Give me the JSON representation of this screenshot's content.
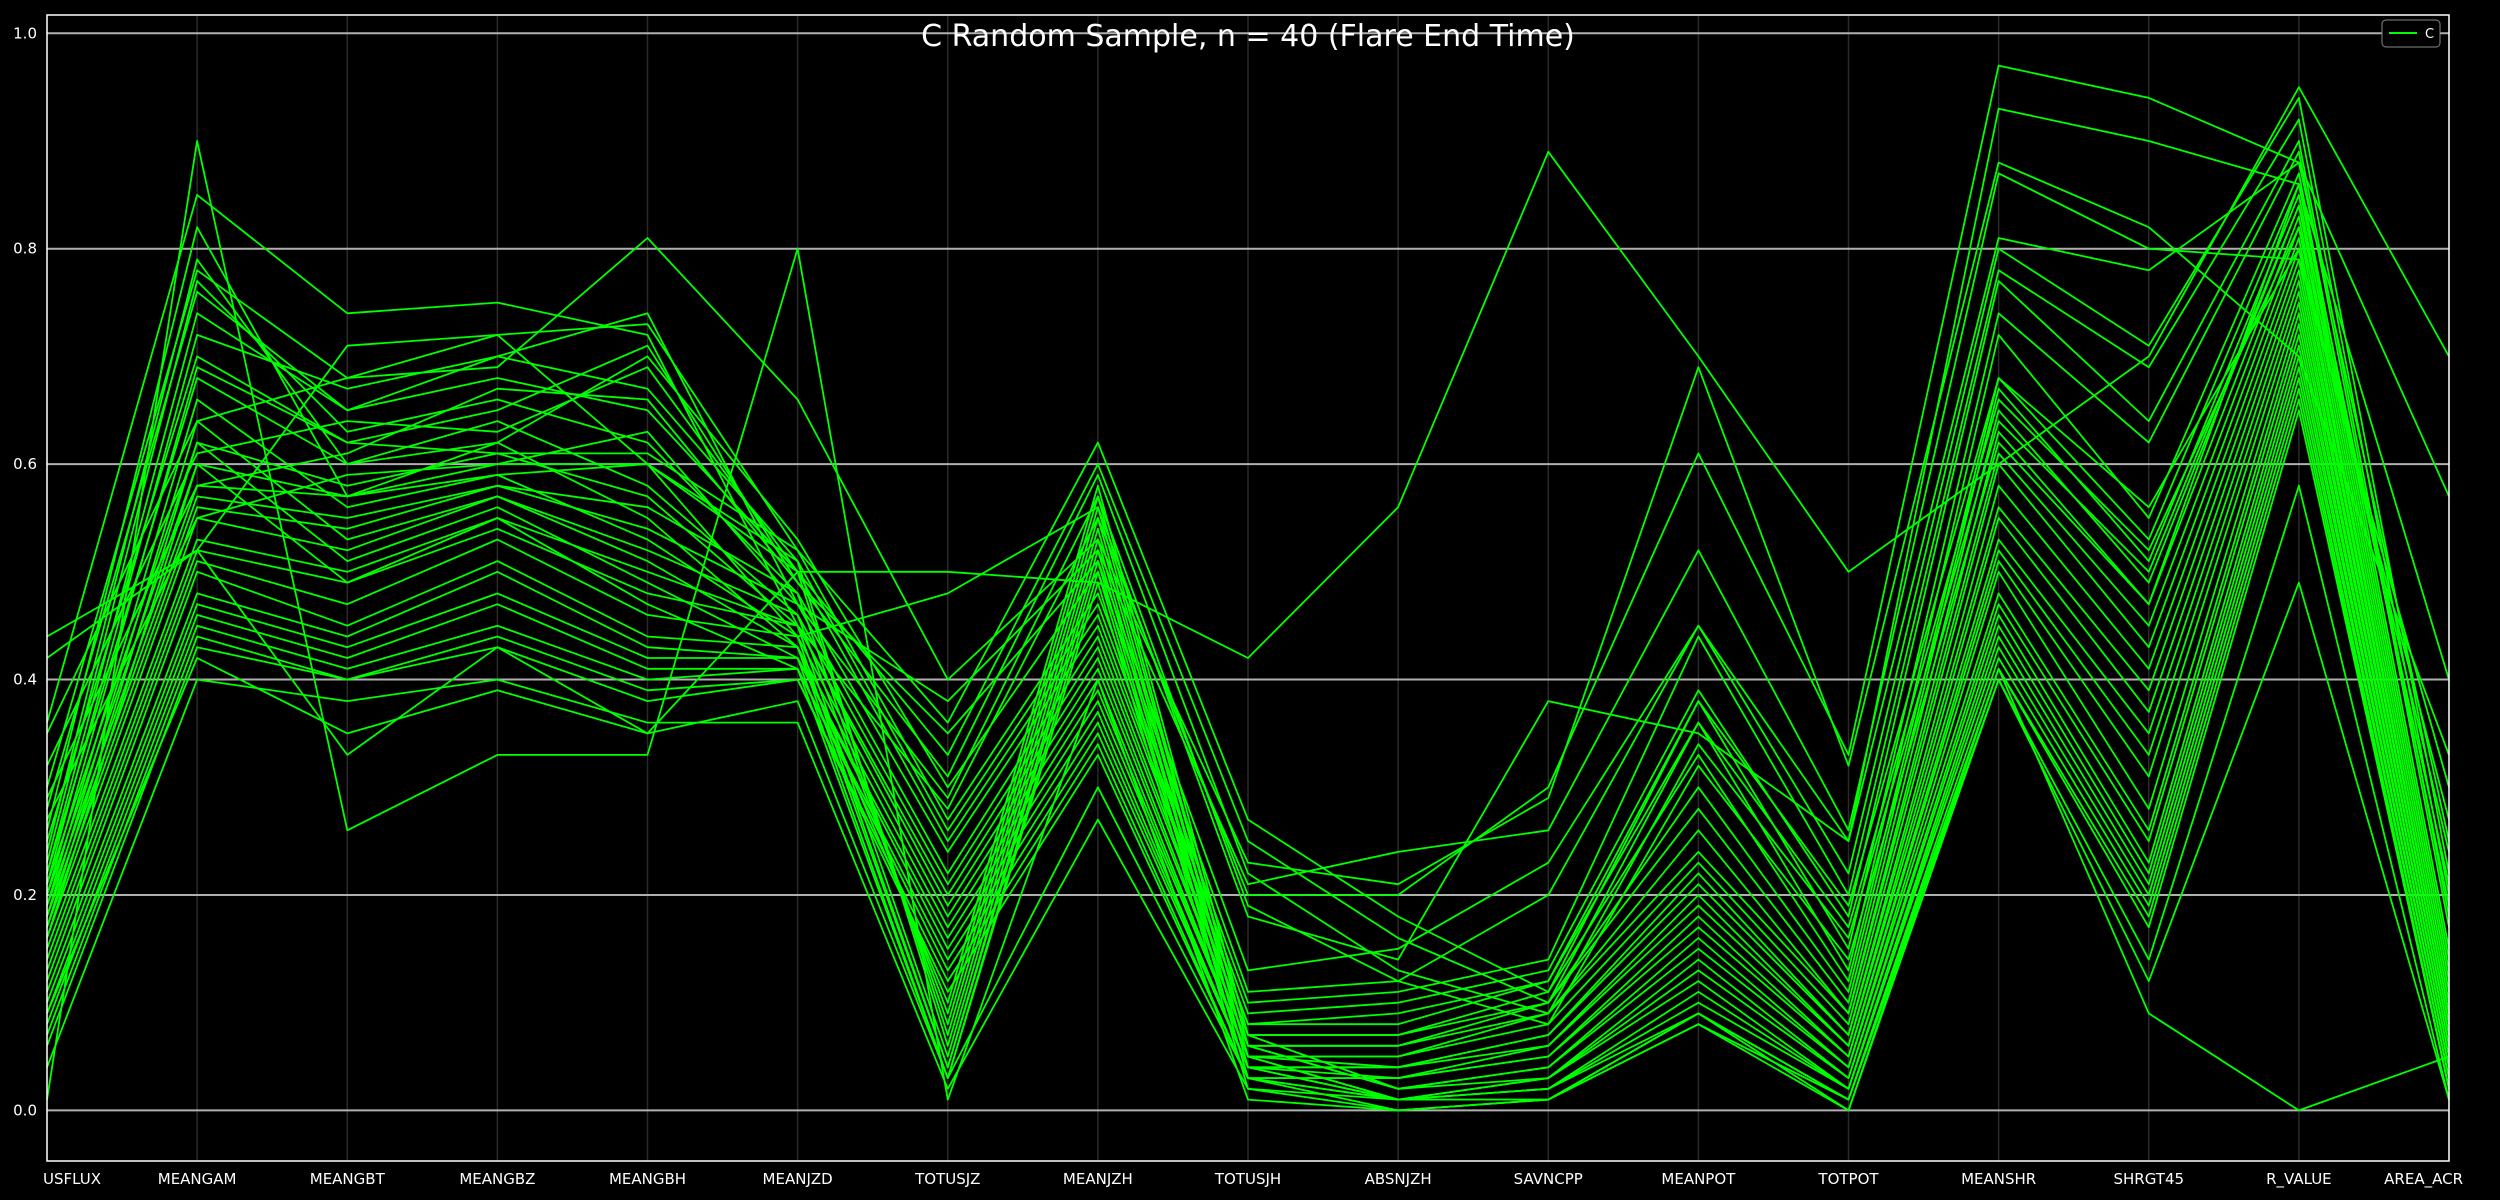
{
  "chart_data": {
    "type": "line",
    "title": "C Random Sample, n = 40 (Flare End Time)",
    "xlabel": "",
    "ylabel": "",
    "categories": [
      "USFLUX",
      "MEANGAM",
      "MEANGBT",
      "MEANGBZ",
      "MEANGBH",
      "MEANJZD",
      "TOTUSJZ",
      "MEANJZH",
      "TOTUSJH",
      "ABSNJZH",
      "SAVNCPP",
      "MEANPOT",
      "TOTPOT",
      "MEANSHR",
      "SHRGT45",
      "R_VALUE",
      "AREA_ACR"
    ],
    "ylim": [
      -0.047,
      1.017
    ],
    "yticks": [
      "0.0",
      "0.2",
      "0.4",
      "0.6",
      "0.8",
      "1.0"
    ],
    "grid": "y",
    "legend": {
      "position": "top-right",
      "entries": [
        "C"
      ]
    },
    "line_color": "#00ff00",
    "series": [
      {
        "values": [
          0.01,
          0.9,
          0.26,
          0.33,
          0.33,
          0.8,
          0.01,
          0.4,
          0.01,
          0.0,
          0.01,
          0.09,
          0.0,
          0.41,
          0.09,
          0.0,
          0.05
        ]
      },
      {
        "values": [
          0.42,
          0.52,
          0.33,
          0.43,
          0.35,
          0.5,
          0.5,
          0.49,
          0.42,
          0.56,
          0.89,
          0.7,
          0.5,
          0.6,
          0.7,
          0.95,
          0.7
        ]
      },
      {
        "values": [
          0.36,
          0.85,
          0.74,
          0.75,
          0.72,
          0.45,
          0.28,
          0.55,
          0.2,
          0.2,
          0.3,
          0.61,
          0.33,
          0.97,
          0.94,
          0.88,
          0.57
        ]
      },
      {
        "values": [
          0.44,
          0.52,
          0.71,
          0.72,
          0.6,
          0.44,
          0.48,
          0.56,
          0.18,
          0.14,
          0.38,
          0.35,
          0.25,
          0.93,
          0.9,
          0.86,
          0.4
        ]
      },
      {
        "values": [
          0.3,
          0.78,
          0.68,
          0.69,
          0.81,
          0.66,
          0.4,
          0.53,
          0.23,
          0.21,
          0.29,
          0.69,
          0.32,
          0.88,
          0.82,
          0.7,
          0.33
        ]
      },
      {
        "values": [
          0.28,
          0.76,
          0.65,
          0.7,
          0.74,
          0.47,
          0.38,
          0.52,
          0.21,
          0.24,
          0.26,
          0.52,
          0.26,
          0.87,
          0.8,
          0.79,
          0.3
        ]
      },
      {
        "values": [
          0.25,
          0.7,
          0.62,
          0.65,
          0.71,
          0.49,
          0.35,
          0.51,
          0.13,
          0.15,
          0.23,
          0.45,
          0.25,
          0.81,
          0.78,
          0.88,
          0.25
        ]
      },
      {
        "values": [
          0.22,
          0.68,
          0.6,
          0.62,
          0.7,
          0.53,
          0.3,
          0.5,
          0.11,
          0.12,
          0.2,
          0.45,
          0.22,
          0.8,
          0.71,
          0.94,
          0.22
        ]
      },
      {
        "values": [
          0.21,
          0.62,
          0.58,
          0.61,
          0.61,
          0.52,
          0.27,
          0.48,
          0.1,
          0.11,
          0.14,
          0.44,
          0.2,
          0.78,
          0.69,
          0.92,
          0.2
        ]
      },
      {
        "values": [
          0.2,
          0.6,
          0.57,
          0.6,
          0.6,
          0.51,
          0.26,
          0.47,
          0.09,
          0.1,
          0.13,
          0.39,
          0.18,
          0.77,
          0.64,
          0.9,
          0.18
        ]
      },
      {
        "values": [
          0.19,
          0.58,
          0.57,
          0.59,
          0.6,
          0.5,
          0.25,
          0.46,
          0.08,
          0.09,
          0.12,
          0.38,
          0.15,
          0.74,
          0.62,
          0.89,
          0.17
        ]
      },
      {
        "values": [
          0.18,
          0.57,
          0.55,
          0.58,
          0.56,
          0.48,
          0.24,
          0.45,
          0.08,
          0.08,
          0.12,
          0.36,
          0.13,
          0.72,
          0.55,
          0.87,
          0.15
        ]
      },
      {
        "values": [
          0.17,
          0.56,
          0.54,
          0.58,
          0.54,
          0.47,
          0.22,
          0.44,
          0.07,
          0.07,
          0.11,
          0.33,
          0.12,
          0.68,
          0.53,
          0.86,
          0.14
        ]
      },
      {
        "values": [
          0.16,
          0.55,
          0.52,
          0.57,
          0.52,
          0.46,
          0.21,
          0.43,
          0.07,
          0.07,
          0.1,
          0.3,
          0.11,
          0.67,
          0.51,
          0.85,
          0.13
        ]
      },
      {
        "values": [
          0.15,
          0.53,
          0.5,
          0.55,
          0.5,
          0.45,
          0.2,
          0.42,
          0.06,
          0.06,
          0.1,
          0.28,
          0.1,
          0.65,
          0.49,
          0.84,
          0.12
        ]
      },
      {
        "values": [
          0.14,
          0.52,
          0.49,
          0.54,
          0.48,
          0.45,
          0.19,
          0.41,
          0.06,
          0.06,
          0.09,
          0.26,
          0.09,
          0.63,
          0.47,
          0.83,
          0.11
        ]
      },
      {
        "values": [
          0.13,
          0.51,
          0.47,
          0.53,
          0.46,
          0.44,
          0.18,
          0.4,
          0.05,
          0.05,
          0.09,
          0.24,
          0.09,
          0.61,
          0.45,
          0.82,
          0.1
        ]
      },
      {
        "values": [
          0.12,
          0.5,
          0.45,
          0.51,
          0.44,
          0.43,
          0.17,
          0.39,
          0.05,
          0.05,
          0.08,
          0.23,
          0.08,
          0.6,
          0.43,
          0.81,
          0.09
        ]
      },
      {
        "values": [
          0.11,
          0.48,
          0.44,
          0.5,
          0.43,
          0.42,
          0.16,
          0.38,
          0.05,
          0.04,
          0.07,
          0.22,
          0.07,
          0.58,
          0.41,
          0.8,
          0.09
        ]
      },
      {
        "values": [
          0.1,
          0.47,
          0.43,
          0.48,
          0.42,
          0.42,
          0.15,
          0.37,
          0.04,
          0.04,
          0.07,
          0.21,
          0.07,
          0.56,
          0.39,
          0.79,
          0.08
        ]
      },
      {
        "values": [
          0.09,
          0.46,
          0.42,
          0.47,
          0.41,
          0.41,
          0.14,
          0.36,
          0.04,
          0.04,
          0.06,
          0.2,
          0.06,
          0.55,
          0.37,
          0.78,
          0.08
        ]
      },
      {
        "values": [
          0.08,
          0.45,
          0.41,
          0.45,
          0.4,
          0.41,
          0.13,
          0.35,
          0.04,
          0.03,
          0.06,
          0.19,
          0.06,
          0.53,
          0.35,
          0.77,
          0.07
        ]
      },
      {
        "values": [
          0.07,
          0.44,
          0.4,
          0.44,
          0.39,
          0.4,
          0.12,
          0.34,
          0.03,
          0.03,
          0.05,
          0.18,
          0.05,
          0.52,
          0.33,
          0.76,
          0.07
        ]
      },
      {
        "values": [
          0.06,
          0.43,
          0.4,
          0.43,
          0.38,
          0.4,
          0.11,
          0.33,
          0.03,
          0.03,
          0.05,
          0.17,
          0.05,
          0.51,
          0.31,
          0.75,
          0.06
        ]
      },
      {
        "values": [
          0.26,
          0.82,
          0.57,
          0.62,
          0.55,
          0.43,
          0.1,
          0.58,
          0.07,
          0.02,
          0.04,
          0.16,
          0.04,
          0.5,
          0.28,
          0.74,
          0.06
        ]
      },
      {
        "values": [
          0.24,
          0.79,
          0.6,
          0.64,
          0.58,
          0.46,
          0.09,
          0.57,
          0.06,
          0.02,
          0.04,
          0.15,
          0.04,
          0.48,
          0.26,
          0.73,
          0.05
        ]
      },
      {
        "values": [
          0.23,
          0.77,
          0.63,
          0.66,
          0.62,
          0.48,
          0.08,
          0.56,
          0.06,
          0.02,
          0.03,
          0.14,
          0.03,
          0.47,
          0.25,
          0.72,
          0.05
        ]
      },
      {
        "values": [
          0.22,
          0.74,
          0.65,
          0.68,
          0.65,
          0.5,
          0.07,
          0.55,
          0.05,
          0.01,
          0.03,
          0.13,
          0.03,
          0.46,
          0.23,
          0.71,
          0.04
        ]
      },
      {
        "values": [
          0.21,
          0.72,
          0.67,
          0.7,
          0.67,
          0.51,
          0.06,
          0.54,
          0.05,
          0.01,
          0.03,
          0.12,
          0.02,
          0.45,
          0.22,
          0.7,
          0.04
        ]
      },
      {
        "values": [
          0.2,
          0.69,
          0.62,
          0.61,
          0.57,
          0.45,
          0.05,
          0.53,
          0.04,
          0.01,
          0.02,
          0.11,
          0.02,
          0.44,
          0.21,
          0.69,
          0.03
        ]
      },
      {
        "values": [
          0.19,
          0.66,
          0.56,
          0.59,
          0.53,
          0.44,
          0.04,
          0.52,
          0.04,
          0.01,
          0.02,
          0.1,
          0.02,
          0.43,
          0.2,
          0.68,
          0.03
        ]
      },
      {
        "values": [
          0.18,
          0.64,
          0.53,
          0.57,
          0.51,
          0.43,
          0.04,
          0.51,
          0.03,
          0.01,
          0.02,
          0.09,
          0.01,
          0.42,
          0.19,
          0.67,
          0.02
        ]
      },
      {
        "values": [
          0.17,
          0.62,
          0.51,
          0.56,
          0.49,
          0.42,
          0.03,
          0.5,
          0.03,
          0.01,
          0.01,
          0.09,
          0.01,
          0.41,
          0.18,
          0.66,
          0.02
        ]
      },
      {
        "values": [
          0.16,
          0.6,
          0.49,
          0.55,
          0.47,
          0.41,
          0.03,
          0.49,
          0.02,
          0.01,
          0.01,
          0.08,
          0.01,
          0.41,
          0.17,
          0.65,
          0.02
        ]
      },
      {
        "values": [
          0.35,
          0.64,
          0.68,
          0.72,
          0.73,
          0.52,
          0.36,
          0.62,
          0.27,
          0.18,
          0.11,
          0.38,
          0.19,
          0.68,
          0.56,
          0.8,
          0.27
        ]
      },
      {
        "values": [
          0.32,
          0.61,
          0.64,
          0.63,
          0.69,
          0.5,
          0.33,
          0.6,
          0.25,
          0.16,
          0.1,
          0.36,
          0.17,
          0.66,
          0.52,
          0.82,
          0.24
        ]
      },
      {
        "values": [
          0.29,
          0.58,
          0.61,
          0.67,
          0.66,
          0.49,
          0.31,
          0.59,
          0.22,
          0.13,
          0.09,
          0.34,
          0.16,
          0.64,
          0.5,
          0.84,
          0.21
        ]
      },
      {
        "values": [
          0.27,
          0.55,
          0.59,
          0.6,
          0.63,
          0.47,
          0.29,
          0.57,
          0.19,
          0.12,
          0.08,
          0.32,
          0.14,
          0.62,
          0.47,
          0.86,
          0.19
        ]
      },
      {
        "values": [
          0.04,
          0.4,
          0.38,
          0.4,
          0.36,
          0.36,
          0.02,
          0.27,
          0.02,
          0.0,
          0.01,
          0.08,
          0.0,
          0.4,
          0.12,
          0.49,
          0.01
        ]
      },
      {
        "values": [
          0.09,
          0.42,
          0.35,
          0.39,
          0.35,
          0.38,
          0.03,
          0.3,
          0.03,
          0.0,
          0.01,
          0.09,
          0.01,
          0.4,
          0.14,
          0.58,
          0.01
        ]
      }
    ]
  }
}
